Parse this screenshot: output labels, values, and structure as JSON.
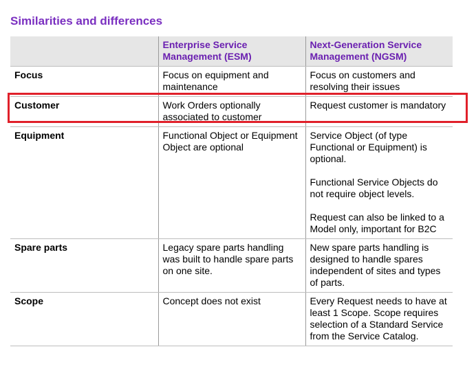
{
  "header": {
    "title": "Similarities and differences"
  },
  "table": {
    "columns": [
      "",
      "Enterprise Service Management (ESM)",
      "Next-Generation Service Management (NGSM)"
    ],
    "rows": [
      {
        "cells": [
          [
            "Focus"
          ],
          [
            "Focus on equipment and maintenance"
          ],
          [
            "Focus on customers and resolving their issues"
          ]
        ]
      },
      {
        "cells": [
          [
            "Customer"
          ],
          [
            "Work Orders optionally associated to customer"
          ],
          [
            "Request customer is mandatory"
          ]
        ]
      },
      {
        "cells": [
          [
            "Equipment"
          ],
          [
            "Functional Object or Equipment Object are optional"
          ],
          [
            "Service Object (of type Functional or Equipment) is optional.",
            "Functional Service Objects do not require object levels.",
            "Request can also be linked to a Model only, important for B2C"
          ]
        ]
      },
      {
        "cells": [
          [
            "Spare parts"
          ],
          [
            "Legacy spare parts handling was built to handle spare parts on one site."
          ],
          [
            "New spare parts handling is designed to handle spares independent of sites and types of parts."
          ]
        ]
      },
      {
        "cells": [
          [
            "Scope"
          ],
          [
            "Concept does not exist"
          ],
          [
            "Every Request needs to have at least 1 Scope. Scope requires selection of a Standard Service from the Service Catalog."
          ]
        ]
      }
    ]
  }
}
